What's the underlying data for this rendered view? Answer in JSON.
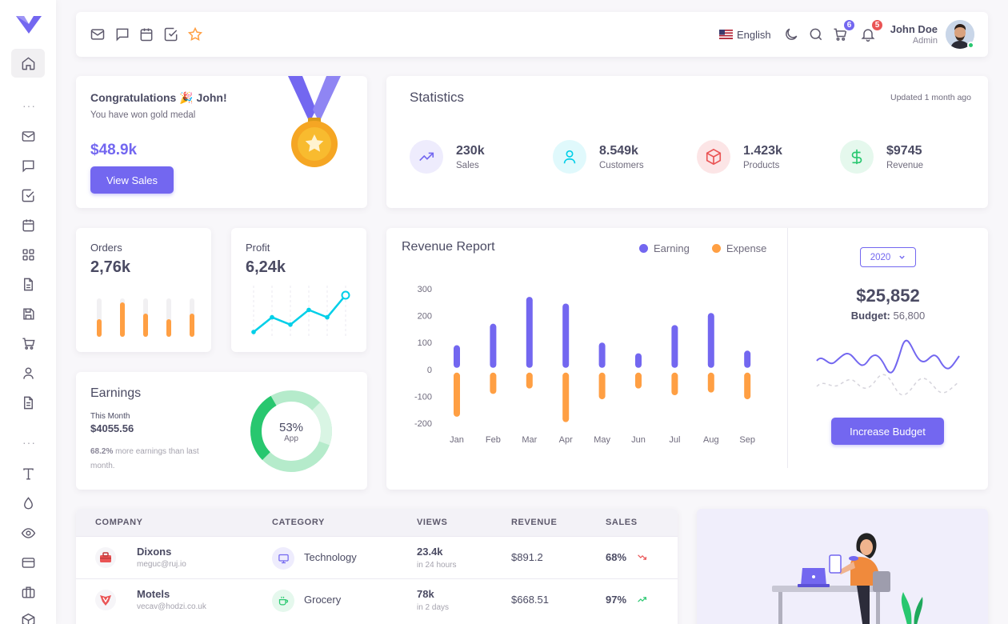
{
  "navbar": {
    "language": "English",
    "cart_count": "6",
    "notif_count": "5",
    "user_name": "John Doe",
    "user_role": "Admin"
  },
  "congrats": {
    "title": "Congratulations 🎉 John!",
    "subtitle": "You have won gold medal",
    "amount": "$48.9k",
    "button": "View Sales"
  },
  "statistics": {
    "title": "Statistics",
    "updated": "Updated 1 month ago",
    "items": [
      {
        "value": "230k",
        "label": "Sales",
        "icon": "trending-up-icon",
        "color": "#7367f0"
      },
      {
        "value": "8.549k",
        "label": "Customers",
        "icon": "user-icon",
        "color": "#00cfe8"
      },
      {
        "value": "1.423k",
        "label": "Products",
        "icon": "box-icon",
        "color": "#ea5455"
      },
      {
        "value": "$9745",
        "label": "Revenue",
        "icon": "dollar-icon",
        "color": "#28c76f"
      }
    ]
  },
  "orders": {
    "title": "Orders",
    "value": "2,76k",
    "bars": [
      0.45,
      0.9,
      0.6,
      0.45,
      0.6
    ]
  },
  "profit": {
    "title": "Profit",
    "value": "6,24k",
    "points": [
      0,
      2,
      1,
      3,
      2,
      5
    ]
  },
  "earnings": {
    "title": "Earnings",
    "period": "This Month",
    "amount": "$4055.56",
    "note_bold": "68.2%",
    "note": " more earnings than last month.",
    "donut_value": "53%",
    "donut_label": "App",
    "donut_fraction": 0.53
  },
  "revenue": {
    "title": "Revenue Report",
    "legend_earning": "Earning",
    "legend_expense": "Expense",
    "year": "2020",
    "total": "$25,852",
    "budget_label": "Budget:",
    "budget_value": "56,800",
    "button": "Increase Budget"
  },
  "chart_data": {
    "type": "bar",
    "categories": [
      "Jan",
      "Feb",
      "Mar",
      "Apr",
      "May",
      "Jun",
      "Jul",
      "Aug",
      "Sep"
    ],
    "series": [
      {
        "name": "Earning",
        "values": [
          90,
          170,
          270,
          245,
          100,
          60,
          165,
          210,
          70
        ],
        "color": "#7367f0"
      },
      {
        "name": "Expense",
        "values": [
          -170,
          -85,
          -65,
          -190,
          -105,
          -65,
          -90,
          -80,
          -105
        ],
        "color": "#ff9f43"
      }
    ],
    "ylim": [
      -200,
      300
    ],
    "yticks": [
      "300",
      "200",
      "100",
      "0",
      "-100",
      "-200"
    ]
  },
  "table": {
    "headers": [
      "COMPANY",
      "CATEGORY",
      "VIEWS",
      "REVENUE",
      "SALES"
    ],
    "rows": [
      {
        "company": "Dixons",
        "email": "meguc@ruj.io",
        "category": "Technology",
        "views": "23.4k",
        "views_period": "in 24 hours",
        "revenue": "$891.2",
        "sales": "68%",
        "trend": "down"
      },
      {
        "company": "Motels",
        "email": "vecav@hodzi.co.uk",
        "category": "Grocery",
        "views": "78k",
        "views_period": "in 2 days",
        "revenue": "$668.51",
        "sales": "97%",
        "trend": "up"
      }
    ]
  }
}
